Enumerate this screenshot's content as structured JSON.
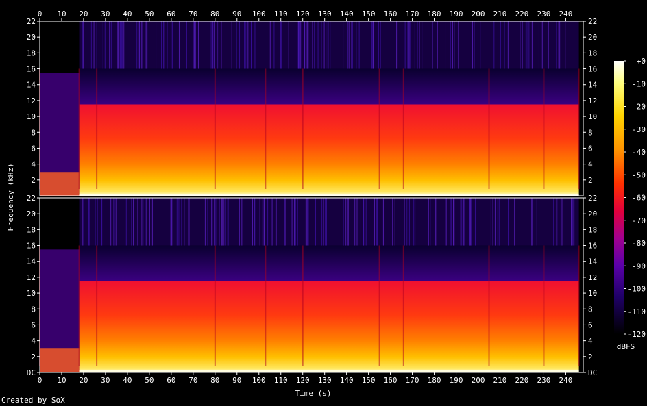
{
  "chart_data": {
    "type": "heatmap",
    "xlabel": "Time (s)",
    "ylabel": "Frequency (kHz)",
    "xlim": [
      0,
      248
    ],
    "x_ticks": [
      0,
      10,
      20,
      30,
      40,
      50,
      60,
      70,
      80,
      90,
      100,
      110,
      120,
      130,
      140,
      150,
      160,
      170,
      180,
      190,
      200,
      210,
      220,
      230,
      240
    ],
    "channels": [
      {
        "name": "",
        "ylim": [
          0,
          22
        ],
        "y_ticks": [
          "2",
          "4",
          "6",
          "8",
          "10",
          "12",
          "14",
          "16",
          "18",
          "20",
          "22"
        ]
      },
      {
        "name": "",
        "ylim": [
          0,
          22
        ],
        "y_ticks": [
          "DC",
          "2",
          "4",
          "6",
          "8",
          "10",
          "12",
          "14",
          "16",
          "18",
          "20",
          "22"
        ]
      }
    ],
    "colorbar": {
      "label": "dBFS",
      "range": [
        -120,
        0
      ],
      "ticks": [
        "+0",
        "-10",
        "-20",
        "-30",
        "-40",
        "-50",
        "-60",
        "-70",
        "-80",
        "-90",
        "-100",
        "-110",
        "-120"
      ],
      "stops": [
        "#ffffff",
        "#ffff80",
        "#ffd400",
        "#ff9000",
        "#ff3000",
        "#e0003c",
        "#a00090",
        "#5a00a8",
        "#20006a",
        "#000000"
      ]
    },
    "content": {
      "cutoff_khz": 16,
      "intro_end_s": 18,
      "end_s": 246,
      "sections_s": [
        0,
        18,
        26,
        80,
        103,
        120,
        155,
        166,
        205,
        230,
        246
      ]
    }
  },
  "credit": "Created by SoX"
}
